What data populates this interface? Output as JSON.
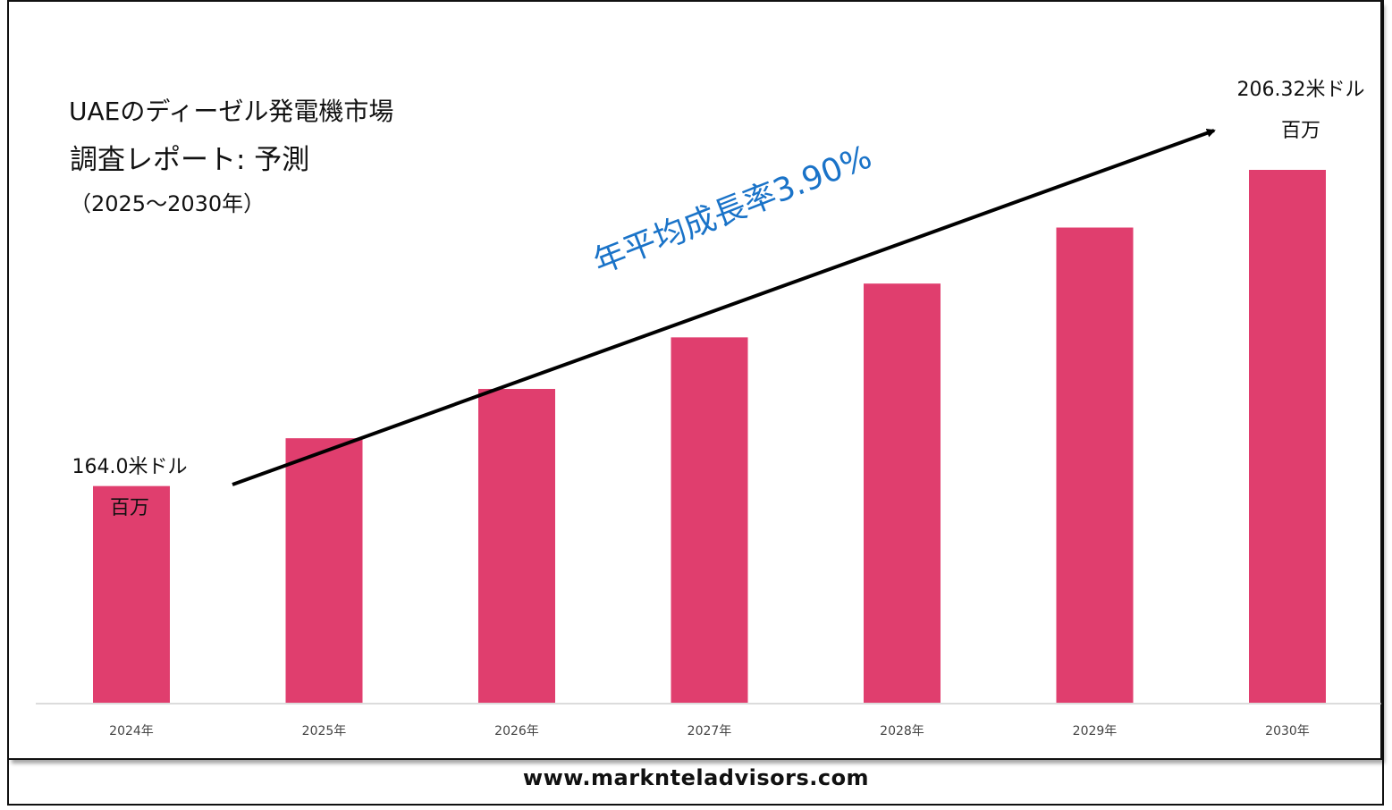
{
  "header": {
    "line1": "UAEのディーゼル発電機市場",
    "line2": "調査レポート: 予測",
    "line3": "（2025～2030年）"
  },
  "cagr_text": "年平均成長率3.90%",
  "first_label": {
    "value": "164.0米ドル",
    "unit": "百万"
  },
  "last_label": {
    "value": "206.32米ドル",
    "unit": "百万"
  },
  "footer_url": "www.marknteladvisors.com",
  "colors": {
    "bar": "#e03e6e",
    "arrow": "#000000",
    "cagr": "#1a73c8",
    "axis": "#d0d0d0"
  },
  "chart_data": {
    "type": "bar",
    "categories": [
      "2024年",
      "2025年",
      "2026年",
      "2027年",
      "2028年",
      "2029年",
      "2030年"
    ],
    "values": [
      164.0,
      170.4,
      177.0,
      183.9,
      191.1,
      198.6,
      206.32
    ],
    "ylim": [
      135,
      215
    ],
    "title": "",
    "xlabel": "",
    "ylabel": ""
  }
}
